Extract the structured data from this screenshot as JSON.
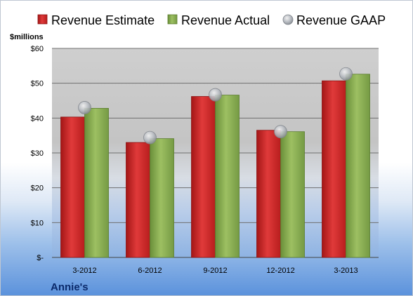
{
  "chart_data": {
    "type": "bar",
    "categories": [
      "3-2012",
      "6-2012",
      "9-2012",
      "12-2012",
      "3-2013"
    ],
    "series": [
      {
        "name": "Revenue Estimate",
        "kind": "bar",
        "color": "#d42a2a",
        "values": [
          40.3,
          33.0,
          46.2,
          36.5,
          50.7
        ]
      },
      {
        "name": "Revenue Actual",
        "kind": "bar",
        "color": "#86ad4e",
        "values": [
          42.8,
          34.1,
          46.6,
          36.1,
          52.6
        ]
      },
      {
        "name": "Revenue GAAP",
        "kind": "marker",
        "color": "#b8bcc2",
        "values": [
          43.0,
          34.4,
          46.7,
          36.1,
          52.7
        ]
      }
    ],
    "unit_label": "$millions",
    "company": "Annie's",
    "ylim": [
      0,
      60
    ],
    "y_ticks": [
      "$-",
      "$10",
      "$20",
      "$30",
      "$40",
      "$50",
      "$60"
    ],
    "y_tick_values": [
      0,
      10,
      20,
      30,
      40,
      50,
      60
    ],
    "grid": true,
    "legend_position": "top"
  }
}
